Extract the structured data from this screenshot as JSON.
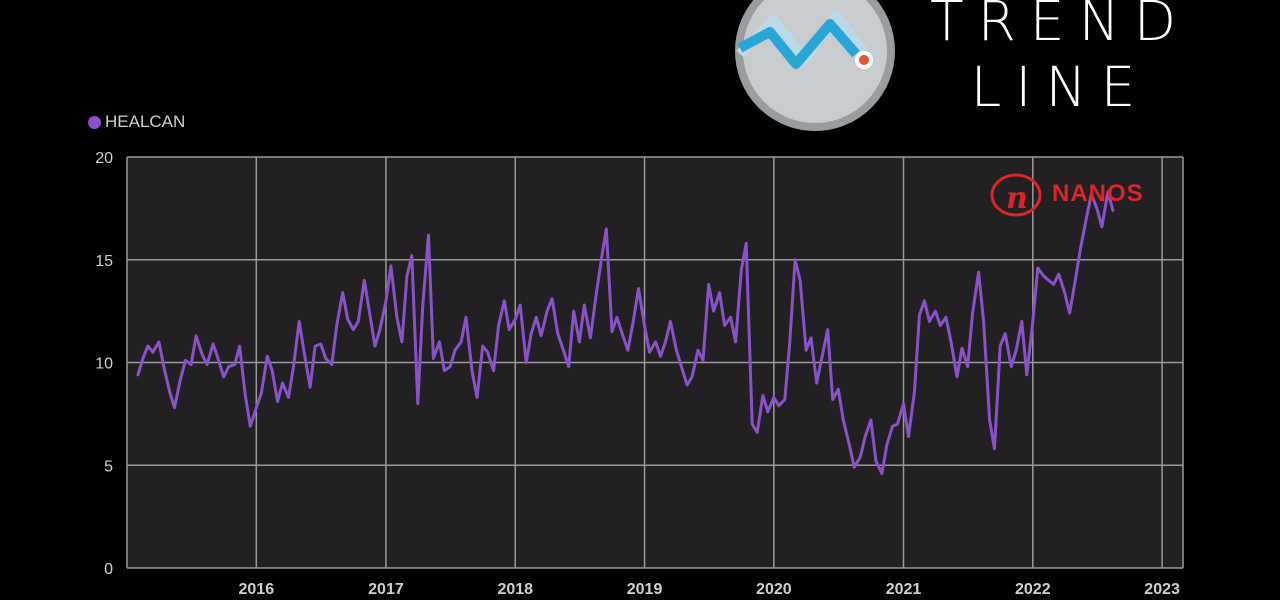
{
  "brand": {
    "line1": "TREND",
    "line2": "LINE",
    "logo_icon": "trendline-logo-icon",
    "watermark_text": "NANOS",
    "watermark_icon": "nanos-logo-icon",
    "watermark_color": "#d8262b"
  },
  "colors": {
    "series": "#8a52c8",
    "plot_bg": "#222022",
    "grid": "#9a9a9a"
  },
  "chart_data": {
    "type": "line",
    "title": "",
    "xlabel": "",
    "ylabel": "",
    "ylim": [
      0,
      20
    ],
    "yticks": [
      "0",
      "5",
      "10",
      "15",
      "20"
    ],
    "xticks": [
      "2016",
      "2017",
      "2018",
      "2019",
      "2020",
      "2021",
      "2022",
      "2023"
    ],
    "grid": true,
    "legend_position": "top-left",
    "series": [
      {
        "name": "HEALCAN",
        "points": [
          [
            "2015-02-01",
            9.4
          ],
          [
            "2015-02-15",
            10.2
          ],
          [
            "2015-03-01",
            10.8
          ],
          [
            "2015-03-15",
            10.5
          ],
          [
            "2015-04-01",
            11.0
          ],
          [
            "2015-04-15",
            9.8
          ],
          [
            "2015-05-01",
            8.6
          ],
          [
            "2015-05-15",
            7.8
          ],
          [
            "2015-06-01",
            9.2
          ],
          [
            "2015-06-15",
            10.1
          ],
          [
            "2015-07-01",
            9.9
          ],
          [
            "2015-07-15",
            11.3
          ],
          [
            "2015-08-01",
            10.4
          ],
          [
            "2015-08-15",
            9.9
          ],
          [
            "2015-09-01",
            10.9
          ],
          [
            "2015-09-15",
            10.2
          ],
          [
            "2015-10-01",
            9.3
          ],
          [
            "2015-10-15",
            9.8
          ],
          [
            "2015-11-01",
            9.9
          ],
          [
            "2015-11-15",
            10.8
          ],
          [
            "2015-12-01",
            8.4
          ],
          [
            "2015-12-15",
            6.9
          ],
          [
            "2016-01-01",
            7.8
          ],
          [
            "2016-01-15",
            8.5
          ],
          [
            "2016-02-01",
            10.3
          ],
          [
            "2016-02-15",
            9.6
          ],
          [
            "2016-03-01",
            8.1
          ],
          [
            "2016-03-15",
            9.0
          ],
          [
            "2016-04-01",
            8.3
          ],
          [
            "2016-04-15",
            9.8
          ],
          [
            "2016-05-01",
            12.0
          ],
          [
            "2016-05-15",
            10.5
          ],
          [
            "2016-06-01",
            8.8
          ],
          [
            "2016-06-15",
            10.8
          ],
          [
            "2016-07-01",
            10.9
          ],
          [
            "2016-07-15",
            10.2
          ],
          [
            "2016-08-01",
            9.9
          ],
          [
            "2016-08-15",
            11.8
          ],
          [
            "2016-09-01",
            13.4
          ],
          [
            "2016-09-15",
            12.1
          ],
          [
            "2016-10-01",
            11.6
          ],
          [
            "2016-10-15",
            12.0
          ],
          [
            "2016-11-01",
            14.0
          ],
          [
            "2016-11-15",
            12.5
          ],
          [
            "2016-12-01",
            10.8
          ],
          [
            "2016-12-15",
            11.6
          ],
          [
            "2017-01-01",
            13.0
          ],
          [
            "2017-01-15",
            14.7
          ],
          [
            "2017-02-01",
            12.2
          ],
          [
            "2017-02-15",
            11.0
          ],
          [
            "2017-03-01",
            14.2
          ],
          [
            "2017-03-15",
            15.2
          ],
          [
            "2017-04-01",
            8.0
          ],
          [
            "2017-04-15",
            12.8
          ],
          [
            "2017-05-01",
            16.2
          ],
          [
            "2017-05-15",
            10.2
          ],
          [
            "2017-06-01",
            11.0
          ],
          [
            "2017-06-15",
            9.6
          ],
          [
            "2017-07-01",
            9.8
          ],
          [
            "2017-07-15",
            10.6
          ],
          [
            "2017-08-01",
            11.0
          ],
          [
            "2017-08-15",
            12.2
          ],
          [
            "2017-09-01",
            9.6
          ],
          [
            "2017-09-15",
            8.3
          ],
          [
            "2017-10-01",
            10.8
          ],
          [
            "2017-10-15",
            10.5
          ],
          [
            "2017-11-01",
            9.6
          ],
          [
            "2017-11-15",
            11.8
          ],
          [
            "2017-12-01",
            13.0
          ],
          [
            "2017-12-15",
            11.6
          ],
          [
            "2018-01-01",
            12.1
          ],
          [
            "2018-01-15",
            12.8
          ],
          [
            "2018-02-01",
            10.0
          ],
          [
            "2018-02-15",
            11.4
          ],
          [
            "2018-03-01",
            12.2
          ],
          [
            "2018-03-15",
            11.3
          ],
          [
            "2018-04-01",
            12.5
          ],
          [
            "2018-04-15",
            13.1
          ],
          [
            "2018-05-01",
            11.4
          ],
          [
            "2018-05-15",
            10.7
          ],
          [
            "2018-06-01",
            9.8
          ],
          [
            "2018-06-15",
            12.5
          ],
          [
            "2018-07-01",
            11.0
          ],
          [
            "2018-07-15",
            12.8
          ],
          [
            "2018-08-01",
            11.2
          ],
          [
            "2018-08-15",
            13.0
          ],
          [
            "2018-09-01",
            15.0
          ],
          [
            "2018-09-15",
            16.5
          ],
          [
            "2018-10-01",
            11.5
          ],
          [
            "2018-10-15",
            12.2
          ],
          [
            "2018-11-01",
            11.3
          ],
          [
            "2018-11-15",
            10.6
          ],
          [
            "2018-12-01",
            12.1
          ],
          [
            "2018-12-15",
            13.6
          ],
          [
            "2019-01-01",
            11.8
          ],
          [
            "2019-01-15",
            10.5
          ],
          [
            "2019-02-01",
            11.0
          ],
          [
            "2019-02-15",
            10.3
          ],
          [
            "2019-03-01",
            11.0
          ],
          [
            "2019-03-15",
            12.0
          ],
          [
            "2019-04-01",
            10.6
          ],
          [
            "2019-04-15",
            9.8
          ],
          [
            "2019-05-01",
            8.9
          ],
          [
            "2019-05-15",
            9.3
          ],
          [
            "2019-06-01",
            10.6
          ],
          [
            "2019-06-15",
            10.1
          ],
          [
            "2019-07-01",
            13.8
          ],
          [
            "2019-07-15",
            12.5
          ],
          [
            "2019-08-01",
            13.4
          ],
          [
            "2019-08-15",
            11.8
          ],
          [
            "2019-09-01",
            12.2
          ],
          [
            "2019-09-15",
            11.0
          ],
          [
            "2019-10-01",
            14.5
          ],
          [
            "2019-10-15",
            15.8
          ],
          [
            "2019-11-01",
            7.0
          ],
          [
            "2019-11-15",
            6.6
          ],
          [
            "2019-12-01",
            8.4
          ],
          [
            "2019-12-15",
            7.6
          ],
          [
            "2020-01-01",
            8.3
          ],
          [
            "2020-01-15",
            7.9
          ],
          [
            "2020-02-01",
            8.2
          ],
          [
            "2020-02-15",
            11.0
          ],
          [
            "2020-03-01",
            15.0
          ],
          [
            "2020-03-15",
            14.0
          ],
          [
            "2020-04-01",
            10.6
          ],
          [
            "2020-04-15",
            11.2
          ],
          [
            "2020-05-01",
            9.0
          ],
          [
            "2020-05-15",
            10.2
          ],
          [
            "2020-06-01",
            11.6
          ],
          [
            "2020-06-15",
            8.2
          ],
          [
            "2020-07-01",
            8.7
          ],
          [
            "2020-07-15",
            7.2
          ],
          [
            "2020-08-01",
            6.0
          ],
          [
            "2020-08-15",
            4.9
          ],
          [
            "2020-09-01",
            5.4
          ],
          [
            "2020-09-15",
            6.4
          ],
          [
            "2020-10-01",
            7.2
          ],
          [
            "2020-10-15",
            5.2
          ],
          [
            "2020-11-01",
            4.6
          ],
          [
            "2020-11-15",
            6.0
          ],
          [
            "2020-12-01",
            6.9
          ],
          [
            "2020-12-15",
            7.0
          ],
          [
            "2021-01-01",
            8.0
          ],
          [
            "2021-01-15",
            6.4
          ],
          [
            "2021-02-01",
            8.6
          ],
          [
            "2021-02-15",
            12.3
          ],
          [
            "2021-03-01",
            13.0
          ],
          [
            "2021-03-15",
            12.0
          ],
          [
            "2021-04-01",
            12.5
          ],
          [
            "2021-04-15",
            11.8
          ],
          [
            "2021-05-01",
            12.2
          ],
          [
            "2021-05-15",
            11.0
          ],
          [
            "2021-06-01",
            9.3
          ],
          [
            "2021-06-15",
            10.7
          ],
          [
            "2021-07-01",
            9.8
          ],
          [
            "2021-07-15",
            12.4
          ],
          [
            "2021-08-01",
            14.4
          ],
          [
            "2021-08-15",
            12.0
          ],
          [
            "2021-09-01",
            7.2
          ],
          [
            "2021-09-15",
            5.8
          ],
          [
            "2021-10-01",
            10.8
          ],
          [
            "2021-10-15",
            11.4
          ],
          [
            "2021-11-01",
            9.8
          ],
          [
            "2021-11-15",
            10.6
          ],
          [
            "2021-12-01",
            12.0
          ],
          [
            "2021-12-15",
            9.4
          ],
          [
            "2022-01-01",
            12.0
          ],
          [
            "2022-01-15",
            14.6
          ],
          [
            "2022-02-01",
            14.2
          ],
          [
            "2022-02-15",
            14.0
          ],
          [
            "2022-03-01",
            13.8
          ],
          [
            "2022-03-15",
            14.3
          ],
          [
            "2022-04-01",
            13.4
          ],
          [
            "2022-04-15",
            12.4
          ],
          [
            "2022-05-01",
            14.0
          ],
          [
            "2022-05-15",
            15.5
          ],
          [
            "2022-06-01",
            17.0
          ],
          [
            "2022-06-15",
            18.2
          ],
          [
            "2022-07-01",
            17.5
          ],
          [
            "2022-07-15",
            16.6
          ],
          [
            "2022-08-01",
            18.3
          ],
          [
            "2022-08-15",
            17.4
          ]
        ]
      }
    ]
  }
}
